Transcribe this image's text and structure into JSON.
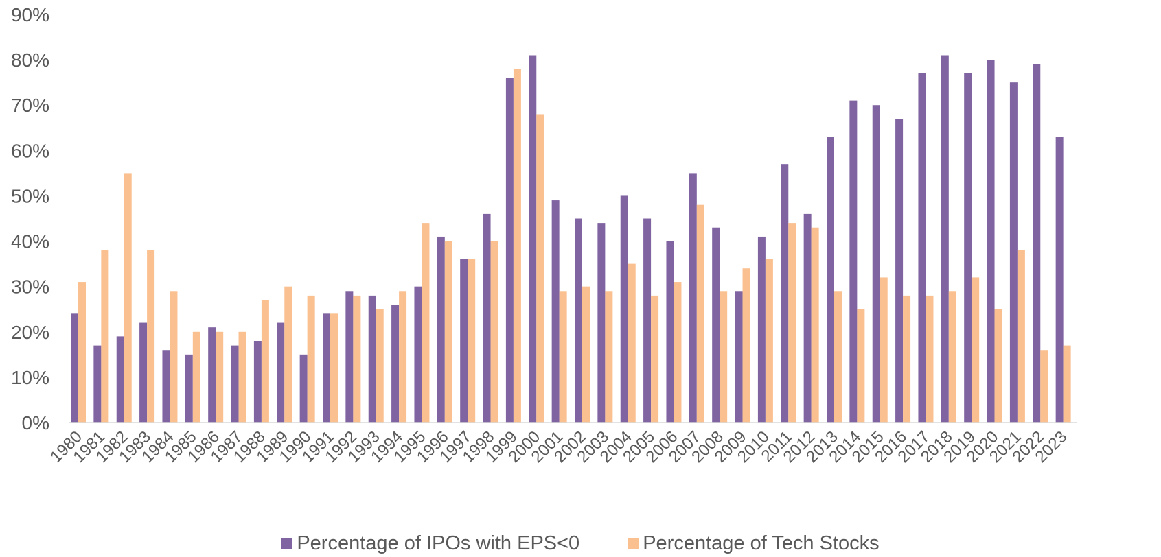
{
  "chart_data": {
    "type": "bar",
    "title": "",
    "xlabel": "",
    "ylabel": "",
    "ylim": [
      0,
      90
    ],
    "yticks": [
      "0%",
      "10%",
      "20%",
      "30%",
      "40%",
      "50%",
      "60%",
      "70%",
      "80%",
      "90%"
    ],
    "grid": false,
    "legend_position": "bottom",
    "categories": [
      "1980",
      "1981",
      "1982",
      "1983",
      "1984",
      "1985",
      "1986",
      "1987",
      "1988",
      "1989",
      "1990",
      "1991",
      "1992",
      "1993",
      "1994",
      "1995",
      "1996",
      "1997",
      "1998",
      "1999",
      "2000",
      "2001",
      "2002",
      "2003",
      "2004",
      "2005",
      "2006",
      "2007",
      "2008",
      "2009",
      "2010",
      "2011",
      "2012",
      "2013",
      "2014",
      "2015",
      "2016",
      "2017",
      "2018",
      "2019",
      "2020",
      "2021",
      "2022",
      "2023"
    ],
    "series": [
      {
        "name": "Percentage of IPOs with EPS<0",
        "color": "#8064a2",
        "values": [
          24,
          17,
          19,
          22,
          16,
          15,
          21,
          17,
          18,
          22,
          15,
          24,
          29,
          28,
          26,
          30,
          41,
          36,
          46,
          76,
          81,
          49,
          45,
          44,
          50,
          45,
          40,
          55,
          43,
          29,
          41,
          57,
          46,
          63,
          71,
          70,
          67,
          77,
          81,
          77,
          80,
          75,
          79,
          63
        ]
      },
      {
        "name": "Percentage of Tech Stocks",
        "color": "#fac090",
        "values": [
          31,
          38,
          55,
          38,
          29,
          20,
          20,
          20,
          27,
          30,
          28,
          24,
          28,
          25,
          29,
          44,
          40,
          36,
          40,
          78,
          68,
          29,
          30,
          29,
          35,
          28,
          31,
          48,
          29,
          34,
          36,
          44,
          43,
          29,
          25,
          32,
          28,
          28,
          29,
          32,
          25,
          38,
          16,
          17
        ]
      }
    ]
  }
}
